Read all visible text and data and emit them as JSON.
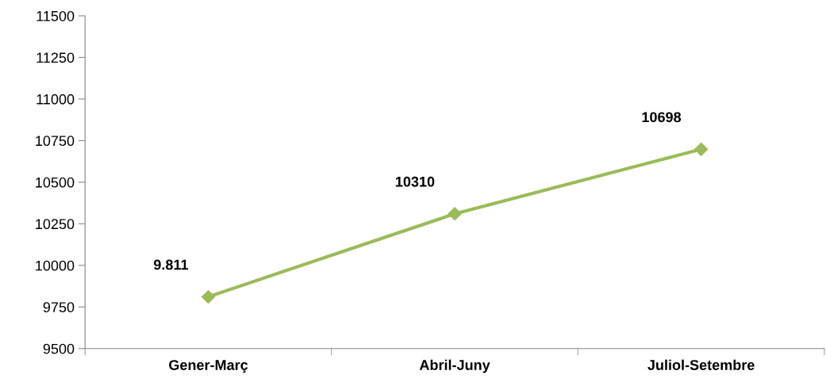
{
  "chart_data": {
    "type": "line",
    "categories": [
      "Gener-Març",
      "Abril-Juny",
      "Juliol-Setembre"
    ],
    "series": [
      {
        "color": "#9bbb59",
        "values": [
          9811,
          10310,
          10698
        ],
        "value_labels": [
          "9.811",
          "10310",
          "10698"
        ]
      }
    ],
    "ylim": [
      9500,
      11500
    ],
    "yticks": [
      9500,
      9750,
      10000,
      10250,
      10500,
      10750,
      11000,
      11250,
      11500
    ],
    "grid": false,
    "legend": false,
    "marker": "diamond",
    "line_style": "solid"
  }
}
